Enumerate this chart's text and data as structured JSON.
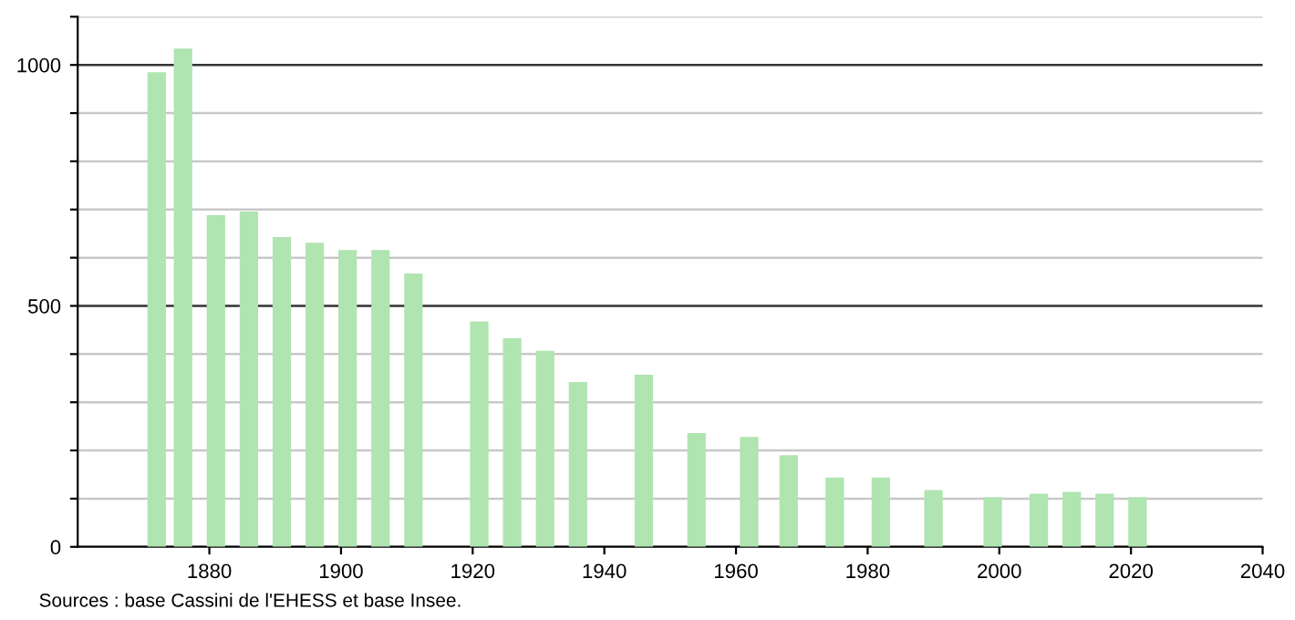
{
  "chart_data": {
    "type": "bar",
    "x": [
      1872,
      1876,
      1881,
      1886,
      1891,
      1896,
      1901,
      1906,
      1911,
      1921,
      1926,
      1931,
      1936,
      1946,
      1954,
      1962,
      1968,
      1975,
      1982,
      1990,
      1999,
      2006,
      2011,
      2016,
      2021
    ],
    "values": [
      985,
      1034,
      688,
      696,
      643,
      631,
      616,
      616,
      567,
      468,
      433,
      407,
      342,
      357,
      236,
      228,
      190,
      144,
      144,
      118,
      103,
      110,
      114,
      110,
      103
    ],
    "color": "#b0e4b0",
    "xlim": [
      1860,
      2040
    ],
    "xticks": [
      1880,
      1900,
      1920,
      1940,
      1960,
      1980,
      2000,
      2020,
      2040
    ],
    "ylim": [
      0,
      1100
    ],
    "yticks": [
      0,
      {
        "value": 100,
        "label": null
      },
      {
        "value": 200,
        "label": null
      },
      {
        "value": 300,
        "label": null
      },
      {
        "value": 400,
        "label": null
      },
      500,
      {
        "value": 600,
        "label": null
      },
      {
        "value": 700,
        "label": null
      },
      {
        "value": 800,
        "label": null
      },
      {
        "value": 900,
        "label": null
      },
      1000,
      {
        "value": 1100,
        "label": null
      }
    ],
    "grid": "y",
    "annotations": [
      "Sources : base Cassini de l'EHESS et base Insee."
    ]
  }
}
